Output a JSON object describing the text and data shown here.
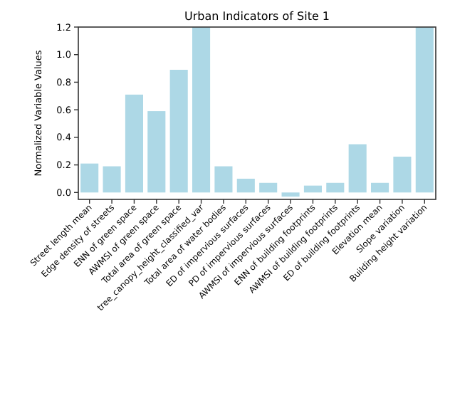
{
  "chart_data": {
    "type": "bar",
    "title": "Urban Indicators of Site 1",
    "ylabel": "Normalized Variable Values",
    "categories": [
      "Street length mean",
      "Edge density of streets",
      "ENN of green space",
      "AWMSI of green space",
      "Total area of green space",
      "tree_canopy_height_classified_var",
      "Total area of water bodies",
      "ED of impervious surfaces",
      "PD of impervious surfaces",
      "AWMSI of impervious surfaces",
      "ENN of building footprints",
      "AWMSI of building footprints",
      "ED of building footprints",
      "Elevation mean",
      "Slope variation",
      "Building height variation"
    ],
    "values": [
      0.21,
      0.19,
      0.71,
      0.59,
      0.89,
      1.2,
      0.19,
      0.1,
      0.07,
      -0.03,
      0.05,
      0.07,
      0.35,
      0.07,
      0.26,
      1.2
    ],
    "color": "#add8e6",
    "ylim": [
      -0.05,
      1.2
    ],
    "yticks": [
      {
        "value": 0,
        "label": "0.0"
      },
      0.2,
      0.4,
      0.6,
      0.8,
      {
        "value": 1,
        "label": "1.0"
      },
      {
        "value": 1.2,
        "label": "1.2"
      }
    ],
    "grid": false
  }
}
